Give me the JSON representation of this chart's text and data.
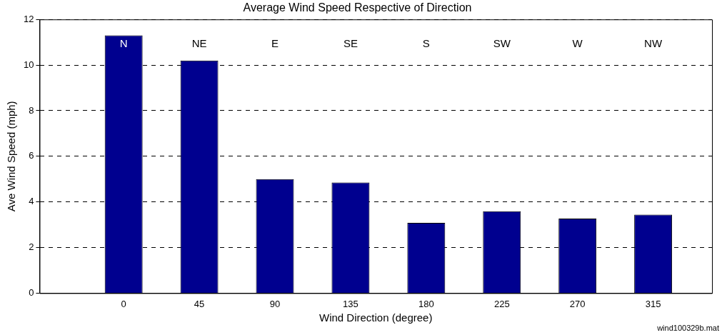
{
  "chart_data": {
    "type": "bar",
    "title": "Average Wind Speed Respective of Direction",
    "xlabel": "Wind Direction (degree)",
    "ylabel": "Ave Wind Speed (mph)",
    "x": [
      0,
      45,
      90,
      135,
      180,
      225,
      270,
      315
    ],
    "values": [
      11.3,
      10.2,
      5.0,
      4.85,
      3.08,
      3.59,
      3.27,
      3.44
    ],
    "color": "#00008f",
    "xlim": [
      -50,
      350
    ],
    "xticks": [
      0,
      45,
      90,
      135,
      180,
      225,
      270,
      315
    ],
    "ylim": [
      0,
      12
    ],
    "yticks": [
      0,
      2,
      4,
      6,
      8,
      10,
      12
    ],
    "grid": "y",
    "line_style": "dashed",
    "legend": false,
    "annotations": [
      "N",
      "NE",
      "E",
      "SE",
      "S",
      "SW",
      "W",
      "NW",
      "wind100329b.mat"
    ]
  }
}
